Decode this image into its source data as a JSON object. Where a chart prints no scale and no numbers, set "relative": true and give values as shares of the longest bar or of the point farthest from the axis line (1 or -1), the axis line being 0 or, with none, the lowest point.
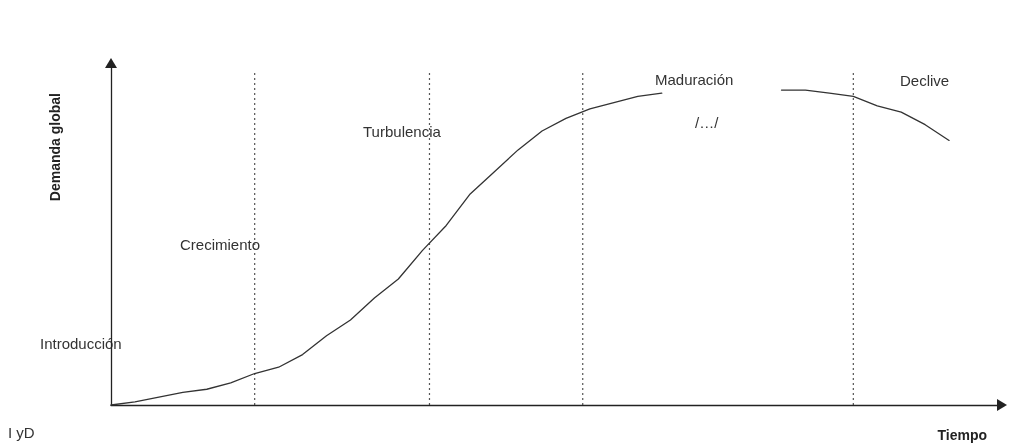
{
  "chart_data": {
    "type": "line",
    "relative": true,
    "xlabel": "Tiempo",
    "ylabel": "Demanda global",
    "categories": [
      null,
      null,
      null,
      null,
      null,
      null,
      null,
      null,
      null,
      null,
      null,
      null,
      null,
      null,
      null,
      null,
      null,
      null,
      null,
      null,
      null,
      null,
      null,
      null,
      null,
      null,
      null,
      null,
      null,
      null,
      null,
      null,
      null,
      null,
      null,
      null,
      null,
      null
    ],
    "series": [
      {
        "color": "#333333",
        "values": [
          0,
          0.01,
          0.025,
          0.04,
          0.05,
          0.07,
          0.1,
          0.12,
          0.16,
          0.22,
          0.27,
          0.34,
          0.4,
          0.49,
          0.57,
          0.67,
          0.74,
          0.81,
          0.87,
          0.91,
          0.94,
          0.96,
          0.98,
          0.99,
          null,
          null,
          null,
          null,
          null,
          null,
          null,
          null,
          null,
          null,
          null,
          null,
          null,
          null
        ]
      },
      {
        "color": "#333333",
        "values": [
          null,
          null,
          null,
          null,
          null,
          null,
          null,
          null,
          null,
          null,
          null,
          null,
          null,
          null,
          null,
          null,
          null,
          null,
          null,
          null,
          null,
          null,
          null,
          null,
          null,
          null,
          null,
          null,
          1,
          1,
          0.99,
          0.98,
          0.95,
          0.93,
          0.89,
          0.84,
          null,
          null
        ]
      }
    ],
    "annotations": [
      "Introducción",
      "Crecimiento",
      "Turbulencia",
      "Maduración",
      "/…/",
      "Declive",
      "I yD"
    ],
    "marker": "none",
    "line_style": "solid",
    "grid": false
  }
}
